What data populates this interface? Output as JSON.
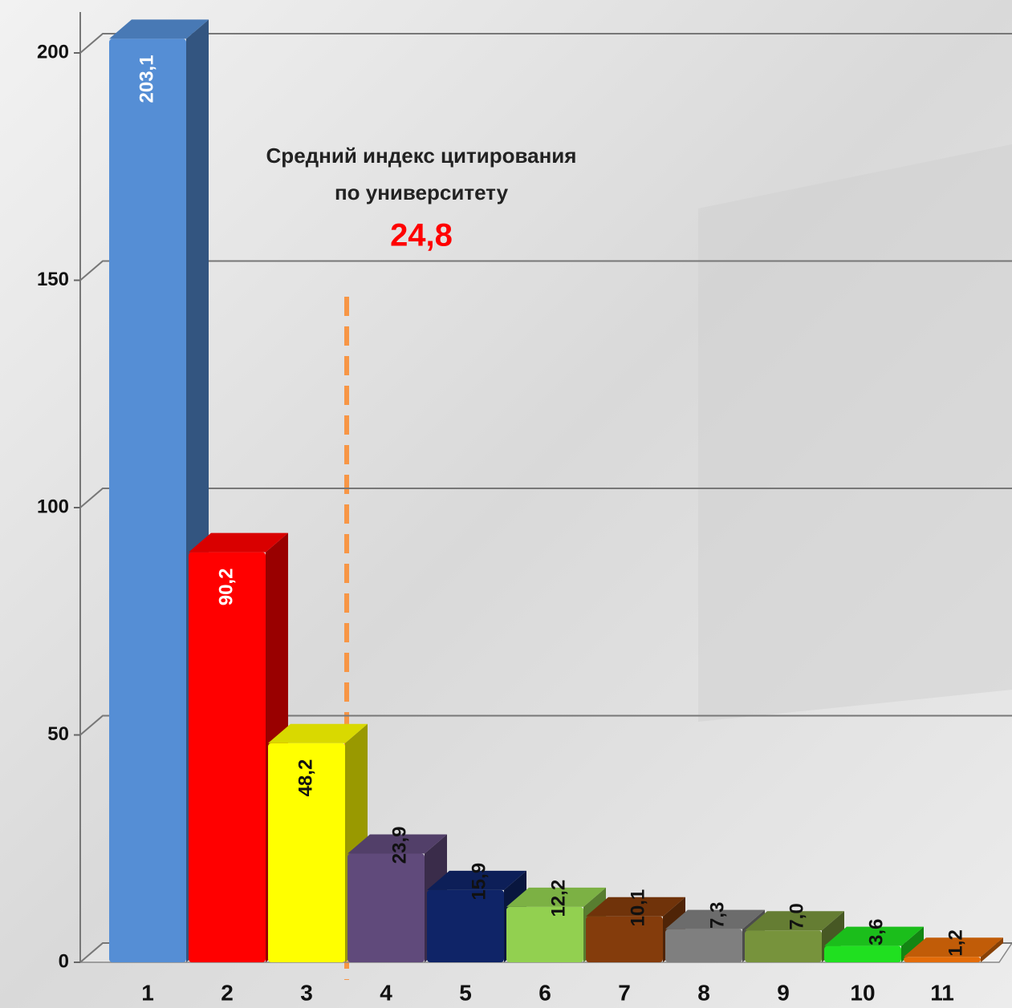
{
  "chart_data": {
    "type": "bar",
    "annotation_lines": [
      "Средний индекс цитирования",
      "по университету"
    ],
    "average_label": "24,8",
    "categories": [
      "1",
      "2",
      "3",
      "4",
      "5",
      "6",
      "7",
      "8",
      "9",
      "10",
      "11"
    ],
    "values": [
      203.1,
      90.2,
      48.2,
      23.9,
      15.9,
      12.2,
      10.1,
      7.3,
      7.0,
      3.6,
      1.2
    ],
    "value_labels": [
      "203,1",
      "90,2",
      "48,2",
      "23,9",
      "15,9",
      "12,2",
      "10,1",
      "7,3",
      "7,0",
      "3,6",
      "1,2"
    ],
    "colors": [
      "#558ed5",
      "#ff0000",
      "#ffff00",
      "#604a7b",
      "#0f2467",
      "#92d050",
      "#843c0c",
      "#7f7f7f",
      "#77933c",
      "#20e020",
      "#e36c09"
    ],
    "ylim": [
      0,
      200
    ],
    "yticks": [
      0,
      50,
      100,
      150,
      200
    ],
    "grid": true
  }
}
